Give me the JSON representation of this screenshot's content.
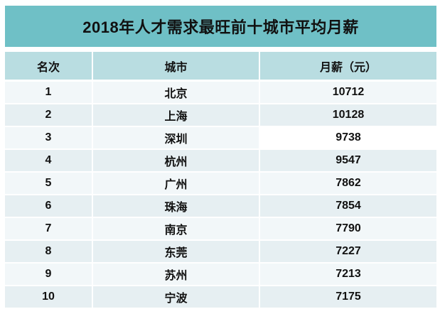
{
  "title": "2018年人才需求最旺前十城市平均月薪",
  "columns": {
    "rank": "名次",
    "city": "城市",
    "salary": "月薪（元）"
  },
  "rows": [
    {
      "rank": "1",
      "city": "北京",
      "salary": "10712"
    },
    {
      "rank": "2",
      "city": "上海",
      "salary": "10128"
    },
    {
      "rank": "3",
      "city": "深圳",
      "salary": "9738",
      "salary_highlight": true
    },
    {
      "rank": "4",
      "city": "杭州",
      "salary": "9547"
    },
    {
      "rank": "5",
      "city": "广州",
      "salary": "7862"
    },
    {
      "rank": "6",
      "city": "珠海",
      "salary": "7854"
    },
    {
      "rank": "7",
      "city": "南京",
      "salary": "7790"
    },
    {
      "rank": "8",
      "city": "东莞",
      "salary": "7227"
    },
    {
      "rank": "9",
      "city": "苏州",
      "salary": "7213"
    },
    {
      "rank": "10",
      "city": "宁波",
      "salary": "7175"
    }
  ],
  "colors": {
    "banner": "#6fc0c6",
    "header_bg": "#b9dde1",
    "row_light": "#f2f7f9",
    "row_dark": "#e6eff2",
    "highlight_bg": "#ffffff",
    "text": "#111111"
  },
  "chart_data": {
    "type": "table",
    "title": "2018年人才需求最旺前十城市平均月薪",
    "columns": [
      "名次",
      "城市",
      "月薪（元）"
    ],
    "rows": [
      [
        1,
        "北京",
        10712
      ],
      [
        2,
        "上海",
        10128
      ],
      [
        3,
        "深圳",
        9738
      ],
      [
        4,
        "杭州",
        9547
      ],
      [
        5,
        "广州",
        7862
      ],
      [
        6,
        "珠海",
        7854
      ],
      [
        7,
        "南京",
        7790
      ],
      [
        8,
        "东莞",
        7227
      ],
      [
        9,
        "苏州",
        7213
      ],
      [
        10,
        "宁波",
        7175
      ]
    ]
  }
}
